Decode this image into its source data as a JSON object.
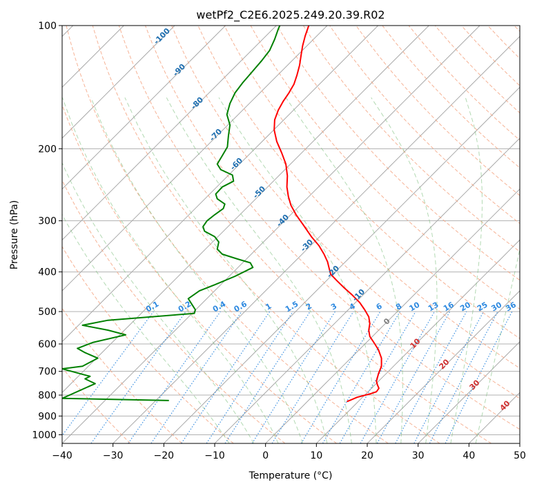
{
  "chart_data": {
    "type": "line",
    "title": "wetPf2_C2E6.2025.249.20.39.R02",
    "xlabel": "Temperature (°C)",
    "ylabel": "Pressure (hPa)",
    "xlim": [
      -40,
      50
    ],
    "ylim": [
      1050,
      100
    ],
    "y_scale": "log",
    "grid": true,
    "x_ticks": [
      -40,
      -30,
      -20,
      -10,
      0,
      10,
      20,
      30,
      40,
      50
    ],
    "y_ticks": [
      100,
      200,
      300,
      400,
      500,
      600,
      700,
      800,
      900,
      1000
    ],
    "series": [
      {
        "color": "#ff0000",
        "points": [
          [
            16,
            830
          ],
          [
            18,
            810
          ],
          [
            20.5,
            795
          ],
          [
            21.8,
            785
          ],
          [
            22.3,
            770
          ],
          [
            22.0,
            755
          ],
          [
            21.8,
            740
          ],
          [
            22.2,
            710
          ],
          [
            22.8,
            680
          ],
          [
            22.8,
            650
          ],
          [
            22.2,
            620
          ],
          [
            21.3,
            595
          ],
          [
            20.5,
            575
          ],
          [
            20.3,
            555
          ],
          [
            20.5,
            535
          ],
          [
            20.3,
            515
          ],
          [
            19.5,
            495
          ],
          [
            18.5,
            475
          ],
          [
            17.0,
            455
          ],
          [
            15.5,
            438
          ],
          [
            14.0,
            420
          ],
          [
            12.8,
            405
          ],
          [
            12.5,
            392
          ],
          [
            12.2,
            378
          ],
          [
            11.5,
            362
          ],
          [
            10.5,
            345
          ],
          [
            9.0,
            328
          ],
          [
            7.5,
            308
          ],
          [
            6.0,
            290
          ],
          [
            5.0,
            275
          ],
          [
            4.5,
            262
          ],
          [
            4.2,
            248
          ],
          [
            4.3,
            233
          ],
          [
            4.0,
            218
          ],
          [
            3.2,
            205
          ],
          [
            2.2,
            192
          ],
          [
            1.7,
            180
          ],
          [
            1.8,
            170
          ],
          [
            2.5,
            161
          ],
          [
            3.5,
            153
          ],
          [
            4.6,
            146
          ],
          [
            5.6,
            139
          ],
          [
            6.2,
            132
          ],
          [
            6.7,
            125
          ],
          [
            7.0,
            118
          ],
          [
            7.3,
            112
          ],
          [
            7.8,
            106
          ],
          [
            8.5,
            100
          ]
        ]
      },
      {
        "color": "#008000",
        "points": [
          [
            -19,
            825
          ],
          [
            -40,
            815
          ],
          [
            -33.5,
            750
          ],
          [
            -34.5,
            740
          ],
          [
            -35.5,
            730
          ],
          [
            -34.5,
            720
          ],
          [
            -40,
            690
          ],
          [
            -36,
            680
          ],
          [
            -33.0,
            650
          ],
          [
            -35.5,
            630
          ],
          [
            -37.0,
            615
          ],
          [
            -34.0,
            595
          ],
          [
            -27.5,
            570
          ],
          [
            -31.0,
            555
          ],
          [
            -36.0,
            540
          ],
          [
            -31.0,
            525
          ],
          [
            -14.0,
            505
          ],
          [
            -13.8,
            495
          ],
          [
            -14.5,
            480
          ],
          [
            -15.2,
            465
          ],
          [
            -13.0,
            445
          ],
          [
            -10.0,
            430
          ],
          [
            -6.0,
            410
          ],
          [
            -2.5,
            390
          ],
          [
            -3.0,
            380
          ],
          [
            -5.5,
            372
          ],
          [
            -8.5,
            362
          ],
          [
            -9.5,
            352
          ],
          [
            -9.2,
            338
          ],
          [
            -10.0,
            328
          ],
          [
            -12.0,
            318
          ],
          [
            -12.3,
            310
          ],
          [
            -11.5,
            300
          ],
          [
            -10.0,
            290
          ],
          [
            -8.3,
            280
          ],
          [
            -8.0,
            273
          ],
          [
            -9.5,
            265
          ],
          [
            -9.8,
            258
          ],
          [
            -8.5,
            248
          ],
          [
            -6.3,
            240
          ],
          [
            -6.5,
            232
          ],
          [
            -8.8,
            225
          ],
          [
            -9.5,
            218
          ],
          [
            -8.5,
            208
          ],
          [
            -7.5,
            198
          ],
          [
            -7.3,
            186
          ],
          [
            -7.0,
            175
          ],
          [
            -7.6,
            165
          ],
          [
            -7.0,
            155
          ],
          [
            -6.0,
            146
          ],
          [
            -4.5,
            138
          ],
          [
            -2.7,
            130
          ],
          [
            -0.8,
            122
          ],
          [
            0.8,
            115
          ],
          [
            1.8,
            108
          ],
          [
            2.5,
            102
          ],
          [
            2.8,
            100
          ]
        ]
      }
    ],
    "mixing_ratio_labels": [
      "0.1",
      "0.2",
      "0.4",
      "0.6",
      "1",
      "1.5",
      "2",
      "3",
      "4",
      "6",
      "8",
      "10",
      "13",
      "16",
      "20",
      "25",
      "30",
      "36"
    ],
    "dry_adiabat_labels": [
      "-100",
      "-90",
      "-80",
      "-70",
      "-60",
      "-50",
      "-40",
      "-30",
      "-20",
      "-10"
    ],
    "zero_label": "0",
    "moist_adiabat_labels": [
      "10",
      "20",
      "30",
      "40"
    ]
  }
}
